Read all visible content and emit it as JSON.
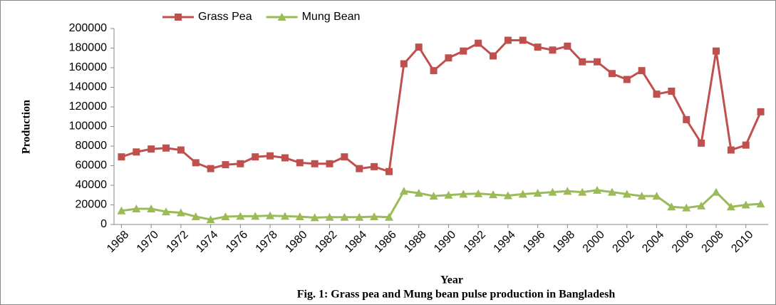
{
  "chart_data": {
    "type": "line",
    "y_label": "Production",
    "x_label": "Year",
    "caption": "Fig. 1: Grass pea and Mung bean pulse production in Bangladesh",
    "x": [
      1968,
      1969,
      1970,
      1971,
      1972,
      1973,
      1974,
      1975,
      1976,
      1977,
      1978,
      1979,
      1980,
      1981,
      1982,
      1983,
      1984,
      1985,
      1986,
      1987,
      1988,
      1989,
      1990,
      1991,
      1992,
      1993,
      1994,
      1995,
      1996,
      1997,
      1998,
      1999,
      2000,
      2001,
      2002,
      2003,
      2004,
      2005,
      2006,
      2007,
      2008,
      2009,
      2010,
      2011
    ],
    "xlim": [
      1967.5,
      2011.5
    ],
    "xticks": [
      1968,
      1970,
      1972,
      1974,
      1976,
      1978,
      1980,
      1982,
      1984,
      1986,
      1988,
      1990,
      1992,
      1994,
      1996,
      1998,
      2000,
      2002,
      2004,
      2006,
      2008,
      2010
    ],
    "ylim": [
      0,
      200000
    ],
    "yticks": [
      0,
      20000,
      40000,
      60000,
      80000,
      100000,
      120000,
      140000,
      160000,
      180000,
      200000
    ],
    "legend": "top",
    "series": [
      {
        "name": "Grass Pea",
        "color": "#c0504d",
        "marker": "square",
        "values": [
          69000,
          74000,
          77000,
          78000,
          76000,
          63000,
          57000,
          61000,
          62000,
          69000,
          70000,
          68000,
          63000,
          62000,
          62000,
          69000,
          57000,
          59000,
          54000,
          164000,
          181000,
          157000,
          170000,
          177000,
          185000,
          172000,
          188000,
          188000,
          181000,
          178000,
          182000,
          166000,
          166000,
          154000,
          148000,
          157000,
          133000,
          136000,
          107000,
          83000,
          177000,
          76000,
          81000,
          115000
        ]
      },
      {
        "name": "Mung Bean",
        "color": "#9bbb59",
        "marker": "triangle",
        "values": [
          14000,
          16000,
          16000,
          13000,
          12000,
          8000,
          5000,
          8000,
          8500,
          8500,
          9000,
          8500,
          8000,
          7000,
          7500,
          7500,
          7500,
          8000,
          7500,
          34000,
          32000,
          29000,
          30000,
          31000,
          31500,
          30500,
          29500,
          31000,
          32000,
          33000,
          34000,
          33000,
          35000,
          33000,
          31000,
          29000,
          29000,
          18000,
          17000,
          19000,
          33000,
          18000,
          20000,
          21000
        ]
      }
    ]
  }
}
